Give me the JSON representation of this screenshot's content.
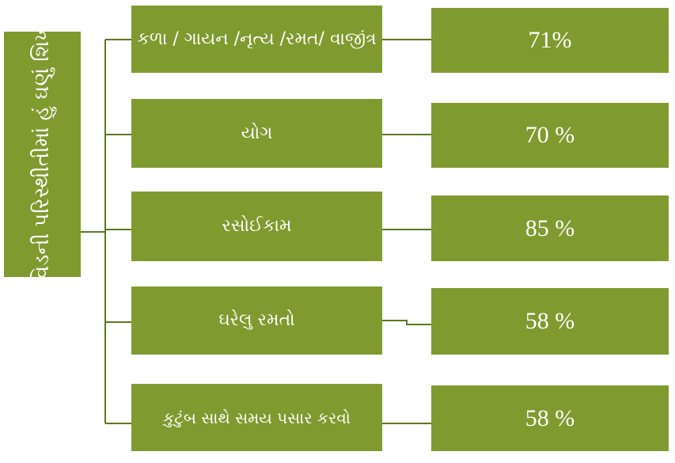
{
  "root": {
    "label": "કોવિડની  પરિસ્થીતીમાં હું  ઘણું શિખ્યો"
  },
  "items": [
    {
      "label": "કળા / ગાયન /નૃત્ય /રમત/ વાજીંત્ર",
      "percent": "71%"
    },
    {
      "label": "યોગ",
      "percent": "70 %"
    },
    {
      "label": "રસોઈકામ",
      "percent": "85 %"
    },
    {
      "label": "ઘરેલુ રમતો",
      "percent": "58 %"
    },
    {
      "label": "કુટુંબ સાથે સમય પસાર કરવો",
      "percent": "58 %"
    }
  ]
}
